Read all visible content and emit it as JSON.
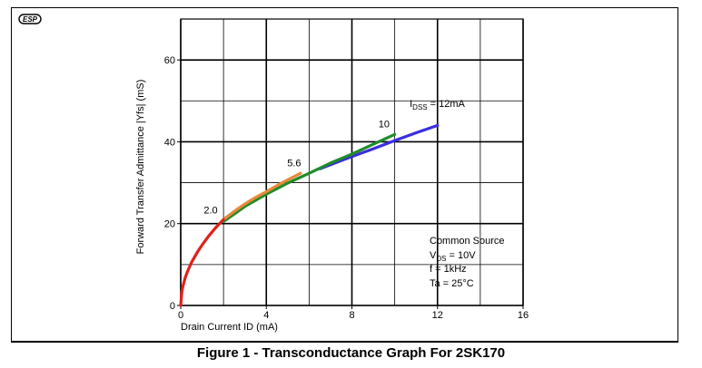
{
  "logo_text": "ESP",
  "caption": "Figure 1 - Transconductance Graph For 2SK170",
  "chart_data": {
    "type": "line",
    "xlabel": "Drain Current ID (mA)",
    "ylabel": "Forward Transfer Admittance |Yfs| (mS)",
    "xlim": [
      0,
      16
    ],
    "ylim": [
      0,
      70
    ],
    "xticks": [
      "0",
      "4",
      "8",
      "12",
      "16"
    ],
    "yticks": [
      "0",
      "20",
      "40",
      "60"
    ],
    "grid": true,
    "series": [
      {
        "name": "2.0",
        "color": "#e0201a",
        "x": [
          0,
          0.05,
          0.1,
          0.2,
          0.3,
          0.5,
          0.8,
          1.0,
          1.3,
          1.6,
          2.0
        ],
        "y": [
          0,
          3.3,
          4.7,
          6.6,
          8.1,
          10.5,
          13.2,
          14.8,
          16.9,
          18.8,
          21.0
        ]
      },
      {
        "name": "5.6",
        "color": "#e8883a",
        "x": [
          2.0,
          2.5,
          3.0,
          3.5,
          4.0,
          4.5,
          5.0,
          5.6
        ],
        "y": [
          21.0,
          23.0,
          24.8,
          26.4,
          27.8,
          29.3,
          30.7,
          32.3
        ]
      },
      {
        "name": "10",
        "color": "#1f8c2a",
        "x": [
          2.0,
          3.0,
          4.0,
          5.0,
          6.0,
          7.0,
          8.0,
          9.0,
          10.0
        ],
        "y": [
          20.5,
          24.2,
          27.2,
          29.9,
          32.3,
          34.8,
          37.0,
          39.4,
          41.8
        ]
      },
      {
        "name": "IDSS = 12mA",
        "color": "#3a2ee0",
        "x": [
          6.5,
          8.0,
          9.0,
          10.0,
          11.0,
          12.0
        ],
        "y": [
          33.4,
          36.4,
          38.3,
          40.3,
          42.2,
          44.0
        ]
      }
    ],
    "annotations": [
      {
        "text": "2.0",
        "x": 1.4,
        "y": 22.5
      },
      {
        "text": "5.6",
        "x": 5.3,
        "y": 34.0
      },
      {
        "text": "10",
        "x": 9.5,
        "y": 43.5
      }
    ],
    "idss_label": {
      "main": "I",
      "sub": "DSS",
      "rest": " = 12mA",
      "x": 10.7,
      "y": 48.5
    },
    "conditions": {
      "title": "Common Source",
      "vds": {
        "main": "V",
        "sub": "DS",
        "rest": " = 10V"
      },
      "freq": "f = 1kHz",
      "temp": "Ta = 25°C"
    }
  }
}
